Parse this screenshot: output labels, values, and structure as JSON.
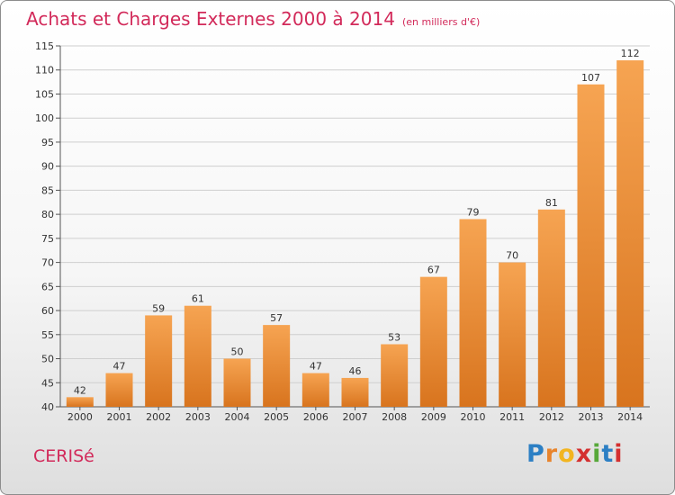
{
  "header": {
    "title": "Achats et Charges Externes 2000 à 2014",
    "unit": "(en milliers d'€)"
  },
  "footer": {
    "commune": "CERISé",
    "logo": "Proxiti",
    "logo_colors": [
      "#2c7fc4",
      "#e8842c",
      "#f2b520",
      "#d42f2f",
      "#57a83a",
      "#2c7fc4",
      "#d42f2f"
    ]
  },
  "colors": {
    "title": "#d22a5a",
    "bar_light": "#f6a452",
    "bar_dark": "#d8741e",
    "grid": "#cfcfcf",
    "axis": "#555555"
  },
  "chart_data": {
    "type": "bar",
    "title": "Achats et Charges Externes 2000 à 2014",
    "xlabel": "",
    "ylabel": "",
    "categories": [
      "2000",
      "2001",
      "2002",
      "2003",
      "2004",
      "2005",
      "2006",
      "2007",
      "2008",
      "2009",
      "2010",
      "2011",
      "2012",
      "2013",
      "2014"
    ],
    "values": [
      42,
      47,
      59,
      61,
      50,
      57,
      47,
      46,
      53,
      67,
      79,
      70,
      81,
      107,
      112
    ],
    "ylim": [
      40,
      115
    ],
    "yticks": [
      40,
      45,
      50,
      55,
      60,
      65,
      70,
      75,
      80,
      85,
      90,
      95,
      100,
      105,
      110,
      115
    ],
    "grid": true,
    "legend": "none"
  }
}
